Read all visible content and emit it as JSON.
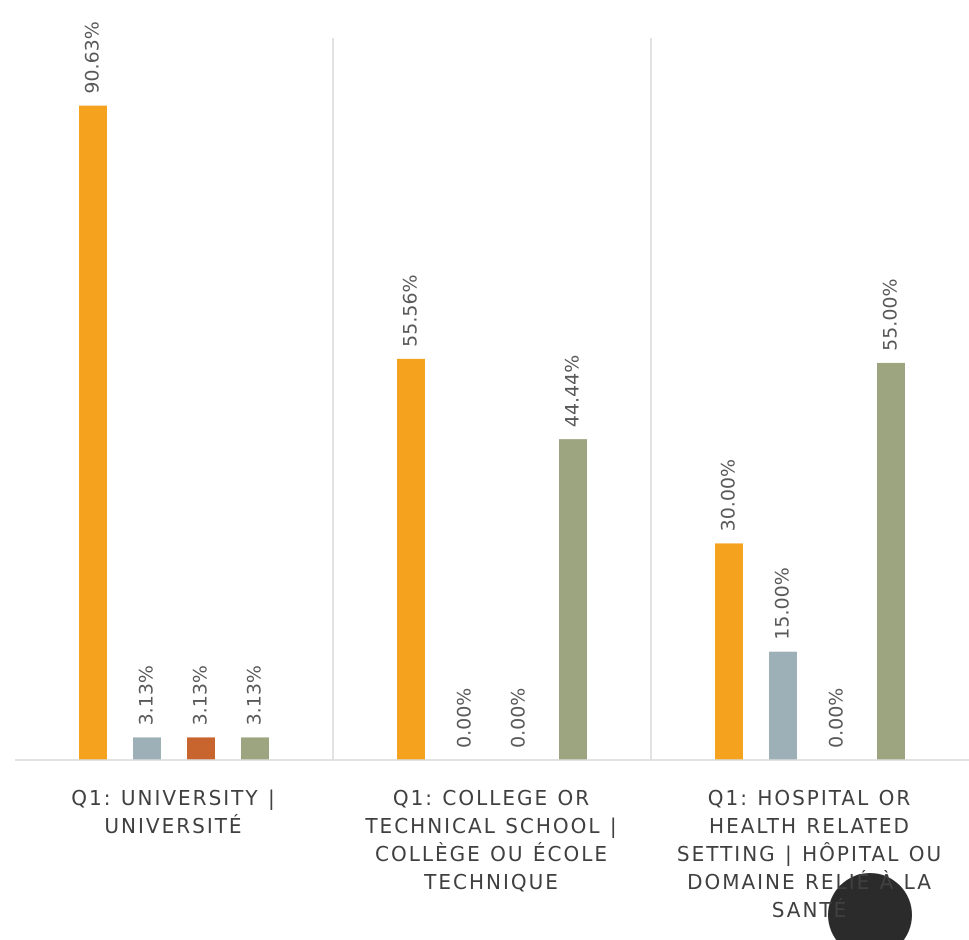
{
  "chart_data": {
    "type": "bar",
    "categories": [
      "Q1: UNIVERSITY | UNIVERSITÉ",
      "Q1: COLLEGE OR TECHNICAL SCHOOL | COLLÈGE OU ÉCOLE TECHNIQUE",
      "Q1: HOSPITAL OR HEALTH RELATED SETTING | HÔPITAL OU DOMAINE RELIÉ À LA SANTÉ"
    ],
    "series": [
      {
        "color": "#f5a21e",
        "values": [
          90.63,
          55.56,
          30.0
        ],
        "value_labels": [
          "90.63%",
          "55.56%",
          "30.00%"
        ]
      },
      {
        "color": "#9db0b8",
        "values": [
          3.13,
          0.0,
          15.0
        ],
        "value_labels": [
          "3.13%",
          "0.00%",
          "15.00%"
        ]
      },
      {
        "color": "#c8642e",
        "values": [
          3.13,
          0.0,
          0.0
        ],
        "value_labels": [
          "3.13%",
          "0.00%",
          "0.00%"
        ]
      },
      {
        "color": "#9ca57f",
        "values": [
          3.13,
          44.44,
          55.0
        ],
        "value_labels": [
          "3.13%",
          "44.44%",
          "55.00%"
        ]
      }
    ],
    "ylim": [
      0,
      100
    ]
  }
}
